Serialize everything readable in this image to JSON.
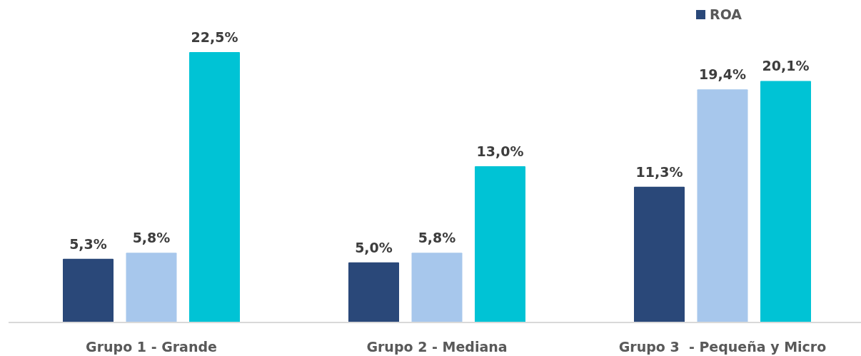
{
  "chart_data": {
    "type": "bar",
    "categories": [
      "Grupo 1 - Grande",
      "Grupo 2 - Mediana",
      "Grupo 3  - Pequeña y Micro"
    ],
    "series": [
      {
        "name": "ROA",
        "color": "#2a4879",
        "values": [
          5.3,
          5.0,
          11.3
        ],
        "value_labels": [
          "5,3%",
          "5,0%",
          "11,3%"
        ]
      },
      {
        "color": "#a7c7ec",
        "values": [
          5.8,
          5.8,
          19.4
        ],
        "value_labels": [
          "5,8%",
          "5,8%",
          "19,4%"
        ]
      },
      {
        "color": "#00c3d5",
        "values": [
          22.5,
          13.0,
          20.1
        ],
        "value_labels": [
          "22,5%",
          "13,0%",
          "20,1%"
        ]
      }
    ],
    "legend": "top right"
  }
}
